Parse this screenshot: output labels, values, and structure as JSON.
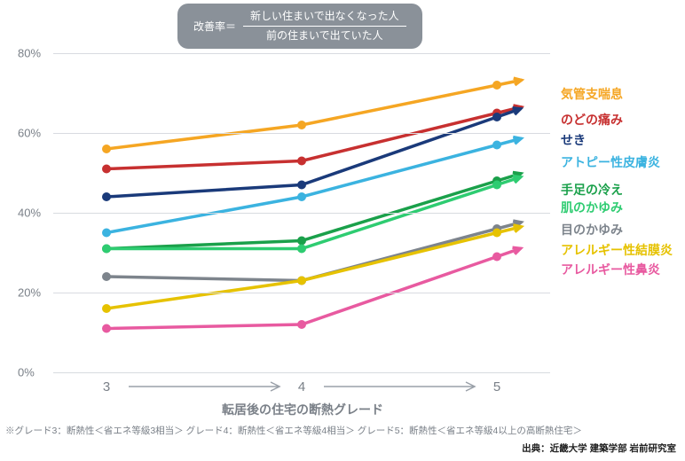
{
  "formula": {
    "lhs": "改善率＝",
    "numerator": "新しい住まいで出なくなった人",
    "denominator": "前の住まいで出ていた人"
  },
  "chart": {
    "type": "line",
    "x_categories": [
      "3",
      "4",
      "5"
    ],
    "x_title": "転居後の住宅の断熱グレード",
    "ylim": [
      0,
      80
    ],
    "ytick_step": 20,
    "y_suffix": "%",
    "grid_color": "#d8dbe0",
    "background_color": "#ffffff",
    "label_color": "#7a8088",
    "label_fontsize": 13,
    "title_fontsize": 14,
    "line_width": 3.5,
    "marker_radius": 5,
    "series": [
      {
        "name": "気管支喘息",
        "color": "#f5a623",
        "values": [
          56,
          62,
          72
        ],
        "label_y": 70
      },
      {
        "name": "のどの痛み",
        "color": "#c73030",
        "values": [
          51,
          53,
          65
        ],
        "label_y": 63.5
      },
      {
        "name": "せき",
        "color": "#1a3a7a",
        "values": [
          44,
          47,
          64
        ],
        "label_y": 58.5
      },
      {
        "name": "アトピー性皮膚炎",
        "color": "#3bb3e0",
        "values": [
          35,
          44,
          57
        ],
        "label_y": 53
      },
      {
        "name": "手足の冷え",
        "color": "#1aa04a",
        "values": [
          31,
          33,
          48
        ],
        "label_y": 46
      },
      {
        "name": "肌のかゆみ",
        "color": "#2ecc71",
        "values": [
          31,
          31,
          47
        ],
        "label_y": 41.5
      },
      {
        "name": "目のかゆみ",
        "color": "#7d848c",
        "values": [
          24,
          23,
          36
        ],
        "label_y": 36
      },
      {
        "name": "アレルギー性結膜炎",
        "color": "#e6c200",
        "values": [
          16,
          23,
          35
        ],
        "label_y": 31
      },
      {
        "name": "アレルギー性鼻炎",
        "color": "#e85aa0",
        "values": [
          11,
          12,
          29
        ],
        "label_y": 26
      }
    ]
  },
  "footnote": "※グレード3：断熱性＜省エネ等級3相当＞ グレード4：断熱性＜省エネ等級4相当＞ グレード5：断熱性＜省エネ等級4以上の高断熱住宅＞",
  "source": "出典：近畿大学 建築学部 岩前研究室"
}
